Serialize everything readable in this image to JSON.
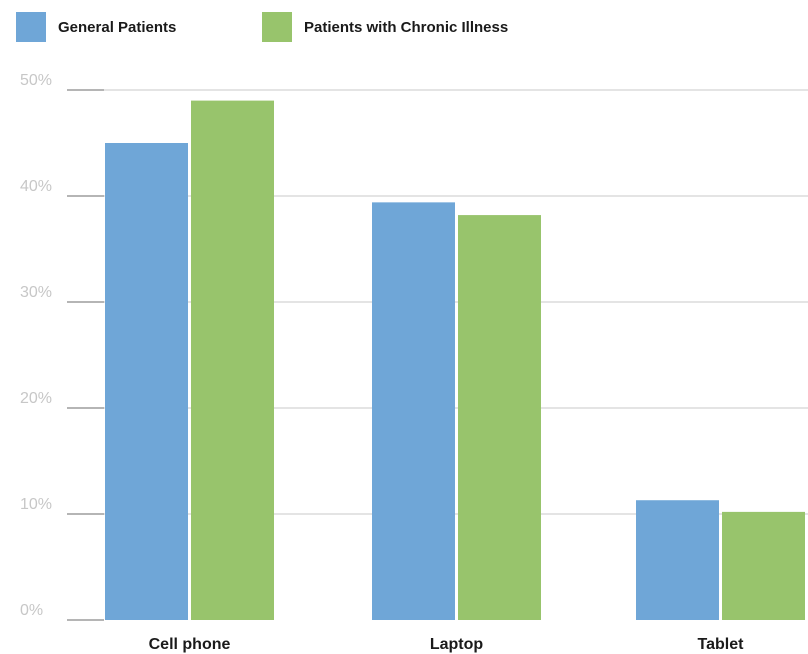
{
  "chart_data": {
    "type": "bar",
    "categories": [
      "Cell phone",
      "Laptop",
      "Tablet"
    ],
    "series": [
      {
        "name": "General Patients",
        "values": [
          45,
          39.4,
          11.3
        ],
        "color": "#6fa6d7"
      },
      {
        "name": "Patients with Chronic Illness",
        "values": [
          49,
          38.2,
          10.2
        ],
        "color": "#98c46c"
      }
    ],
    "y_ticks": [
      "0%",
      "10%",
      "20%",
      "30%",
      "40%",
      "50%"
    ],
    "ylim": [
      0,
      50
    ],
    "grid": true,
    "legend": "top-left",
    "title": "",
    "xlabel": "",
    "ylabel": ""
  }
}
